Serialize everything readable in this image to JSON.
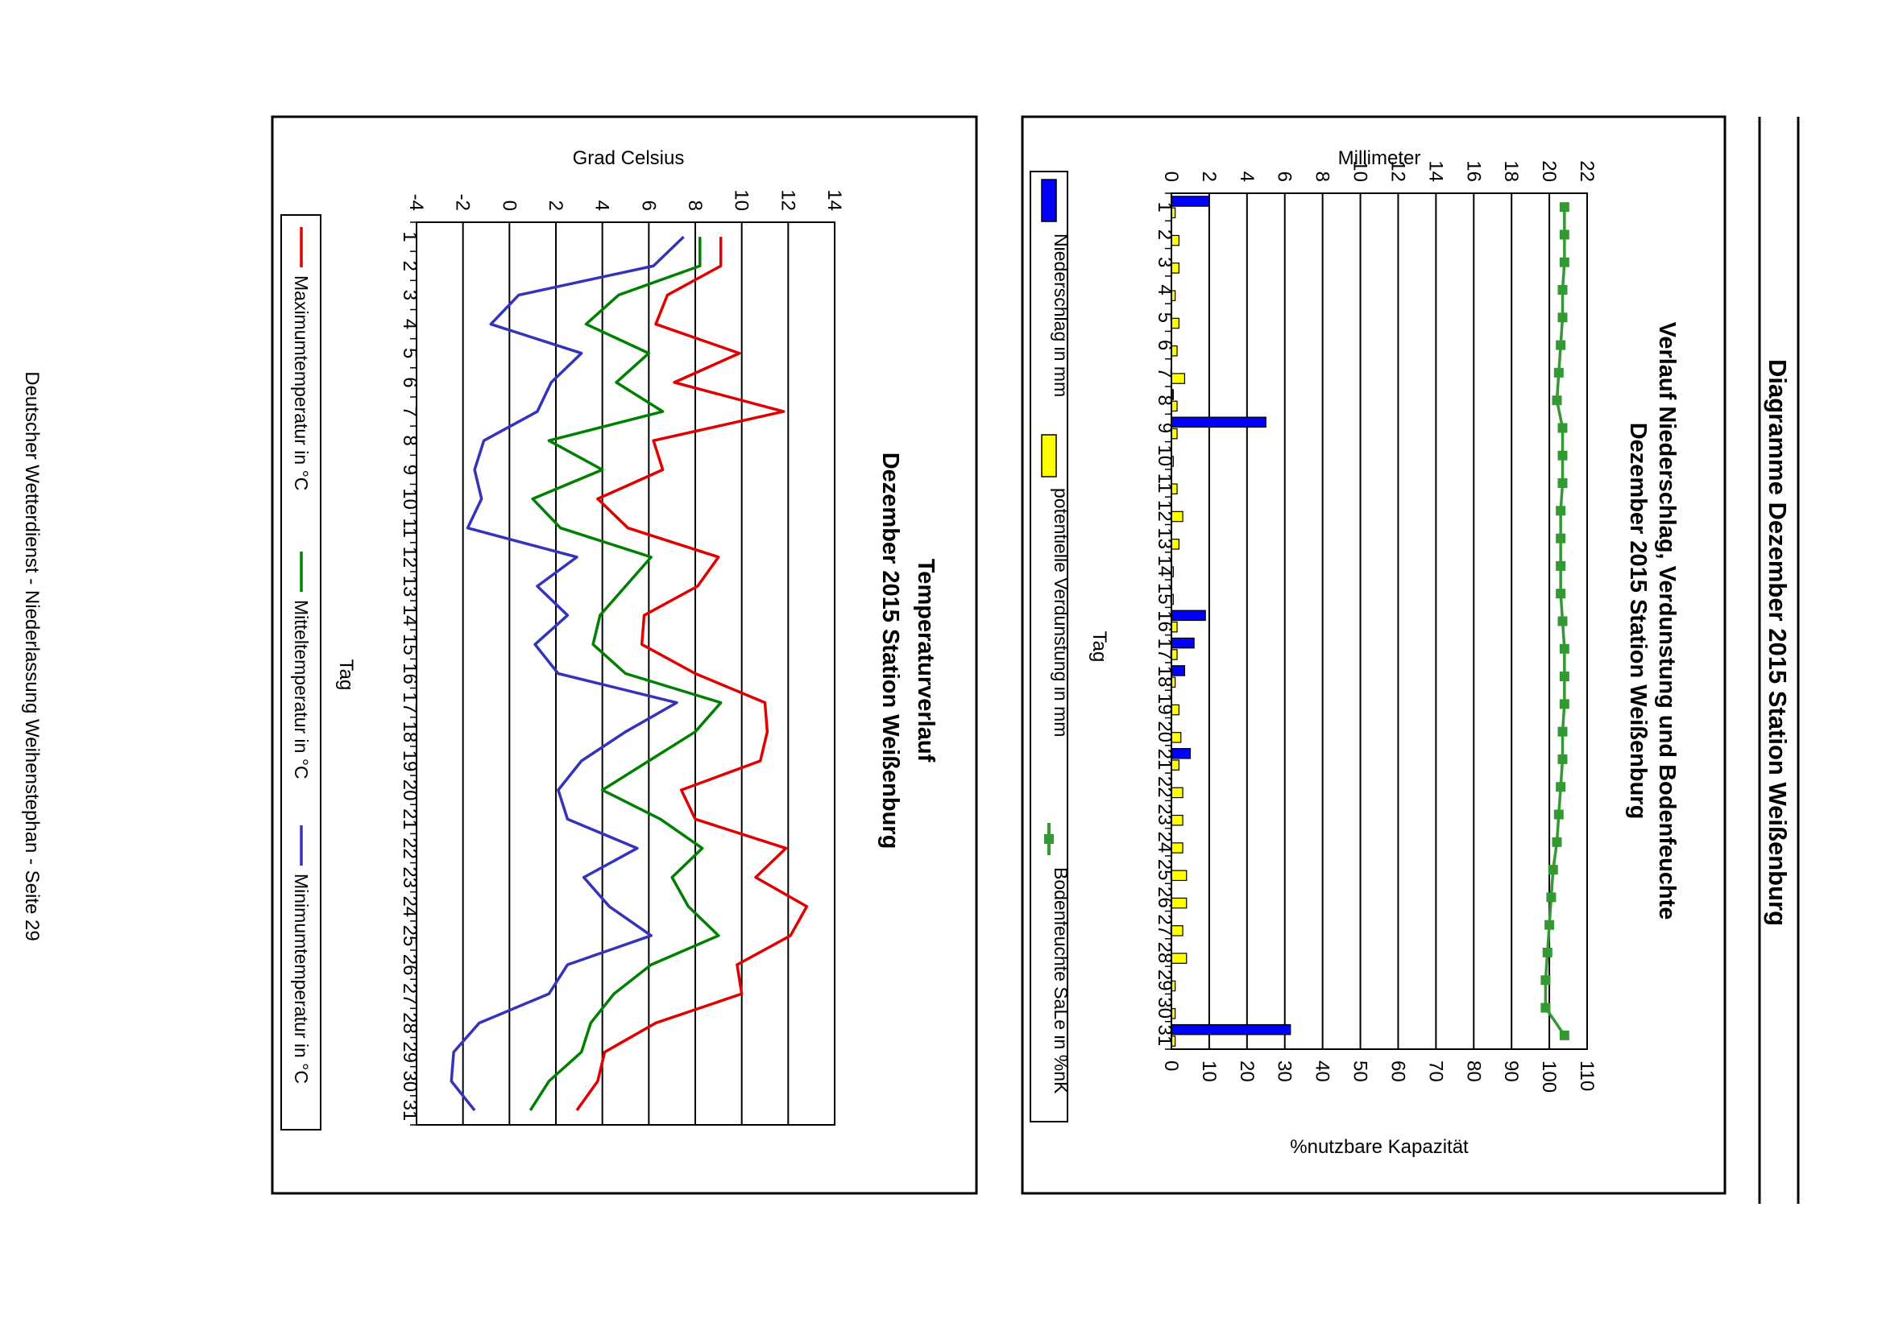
{
  "page": {
    "header_title": "Diagramme Dezember 2015 Station Weißenburg",
    "footer": "Deutscher Wetterdienst - Niederlassung Weihenstephan - Seite 29"
  },
  "colors": {
    "niederschlag": "#0000ff",
    "verdunstung": "#ffff00",
    "bodenfeuchte": "#339933",
    "max": "#e00000",
    "mittel": "#008000",
    "min": "#3333bb"
  },
  "chart_data": [
    {
      "id": "precip",
      "type": "bar",
      "title": "Verlauf Niederschlag, Verdunstung und Bodenfeuchte",
      "subtitle": "Dezember 2015 Station Weißenburg",
      "xlabel": "Tag",
      "ylabel": "Millimeter",
      "y2label": "%nutzbare Kapazität",
      "ylim": [
        0,
        22
      ],
      "y2lim": [
        0,
        110
      ],
      "yticks": [
        "0",
        "2",
        "4",
        "6",
        "8",
        "10",
        "12",
        "14",
        "16",
        "18",
        "20",
        "22"
      ],
      "y2ticks": [
        "0",
        "10",
        "20",
        "30",
        "40",
        "50",
        "60",
        "70",
        "80",
        "90",
        "100",
        "110"
      ],
      "categories": [
        "1",
        "2",
        "3",
        "4",
        "5",
        "6",
        "7",
        "8",
        "9",
        "10",
        "11",
        "12",
        "13",
        "14",
        "15",
        "16",
        "17",
        "18",
        "19",
        "20",
        "21",
        "22",
        "23",
        "24",
        "25",
        "26",
        "27",
        "28",
        "29",
        "30",
        "31"
      ],
      "series": [
        {
          "name": "Niederschlag in mm",
          "kind": "bar",
          "values": [
            2.0,
            0,
            0,
            0,
            0,
            0,
            0,
            0.1,
            5.0,
            0,
            0,
            0,
            0,
            0,
            0,
            1.8,
            1.2,
            0.7,
            0,
            0,
            1.0,
            0,
            0,
            0,
            0,
            0,
            0,
            0,
            0,
            0,
            6.3
          ]
        },
        {
          "name": "potentielle Verdunstung in mm",
          "kind": "bar",
          "values": [
            0.2,
            0.4,
            0.4,
            0.2,
            0.4,
            0.3,
            0.7,
            0.3,
            0.3,
            0.1,
            0.3,
            0.6,
            0.4,
            0.1,
            0.1,
            0.3,
            0.3,
            0.2,
            0.4,
            0.5,
            0.4,
            0.6,
            0.6,
            0.6,
            0.8,
            0.8,
            0.6,
            0.8,
            0.2,
            0.2,
            0.2
          ]
        },
        {
          "name": "Bodenfeuchte SaLe in %nK",
          "kind": "line_y2",
          "values": [
            104,
            104,
            104,
            103.5,
            103.5,
            103,
            102.5,
            102,
            103.5,
            103.5,
            103.5,
            103,
            103,
            103,
            103,
            103.5,
            104,
            104,
            104,
            103.5,
            103.5,
            103,
            102.5,
            102,
            101,
            100.5,
            100,
            99.5,
            99,
            99,
            104
          ]
        }
      ]
    },
    {
      "id": "temp",
      "type": "line",
      "title": "Temperaturverlauf",
      "subtitle": "Dezember 2015 Station Weißenburg",
      "xlabel": "Tag",
      "ylabel": "Grad Celsius",
      "ylim": [
        -4,
        14
      ],
      "yticks": [
        "-4",
        "-2",
        "0",
        "2",
        "4",
        "6",
        "8",
        "10",
        "12",
        "14"
      ],
      "categories": [
        "1",
        "2",
        "3",
        "4",
        "5",
        "6",
        "7",
        "8",
        "9",
        "10",
        "11",
        "12",
        "13",
        "14",
        "15",
        "16",
        "17",
        "18",
        "19",
        "20",
        "21",
        "22",
        "23",
        "24",
        "25",
        "26",
        "27",
        "28",
        "29",
        "30",
        "31"
      ],
      "series": [
        {
          "name": "Maximumtemperatur in °C",
          "values": [
            9.1,
            9.1,
            6.8,
            6.3,
            9.9,
            7.1,
            11.8,
            6.2,
            6.6,
            3.8,
            5.1,
            9.0,
            8.1,
            5.8,
            5.7,
            8.0,
            11.0,
            11.1,
            10.8,
            7.4,
            8.0,
            11.9,
            10.6,
            12.8,
            12.1,
            9.8,
            10.0,
            6.3,
            4.1,
            3.8,
            2.9
          ]
        },
        {
          "name": "Mitteltemperatur in °C",
          "values": [
            8.2,
            8.2,
            4.7,
            3.3,
            6.0,
            4.6,
            6.6,
            1.7,
            4.0,
            1.0,
            2.2,
            6.1,
            5.0,
            3.9,
            3.6,
            5.0,
            9.1,
            8.0,
            6.0,
            4.0,
            6.5,
            8.3,
            7.0,
            7.7,
            9.0,
            6.1,
            4.5,
            3.5,
            3.1,
            1.7,
            0.9
          ]
        },
        {
          "name": "Minimumtemperatur in °C",
          "values": [
            7.5,
            6.2,
            0.4,
            -0.8,
            3.1,
            1.8,
            1.2,
            -1.1,
            -1.5,
            -1.2,
            -1.8,
            2.9,
            1.2,
            2.5,
            1.1,
            2.1,
            7.2,
            5.0,
            3.1,
            2.1,
            2.5,
            5.5,
            3.2,
            4.3,
            6.1,
            2.5,
            1.7,
            -1.3,
            -2.4,
            -2.5,
            -1.5
          ]
        }
      ]
    }
  ]
}
